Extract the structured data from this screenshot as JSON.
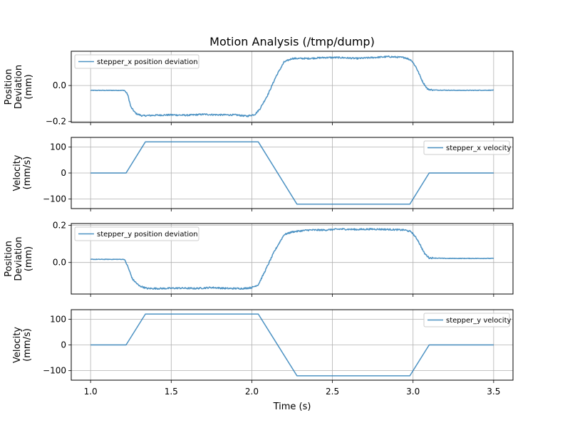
{
  "chart_data": {
    "type": "line",
    "title": "Motion Analysis (/tmp/dump)",
    "xlabel": "Time (s)",
    "xlim": [
      0.88,
      3.62
    ],
    "xticks": [
      1.0,
      1.5,
      2.0,
      2.5,
      3.0,
      3.5
    ],
    "xtick_labels": [
      "1.0",
      "1.5",
      "2.0",
      "2.5",
      "3.0",
      "3.5"
    ],
    "series_color": "#1f77b4",
    "grid": true,
    "panels": [
      {
        "ylabel": [
          "Position",
          "Deviation",
          "(mm)"
        ],
        "ylim": [
          -0.205,
          0.19
        ],
        "yticks": [
          0.0,
          -0.2
        ],
        "ytick_labels": [
          "0.0",
          "−0.2"
        ],
        "legend": "stepper_x position deviation",
        "legend_loc": "upper left",
        "noise": 0.006,
        "points": [
          [
            1.0,
            -0.027
          ],
          [
            1.21,
            -0.027
          ],
          [
            1.23,
            -0.05
          ],
          [
            1.25,
            -0.12
          ],
          [
            1.28,
            -0.155
          ],
          [
            1.32,
            -0.168
          ],
          [
            1.4,
            -0.165
          ],
          [
            1.5,
            -0.163
          ],
          [
            1.6,
            -0.165
          ],
          [
            1.7,
            -0.16
          ],
          [
            1.8,
            -0.163
          ],
          [
            1.9,
            -0.163
          ],
          [
            1.97,
            -0.17
          ],
          [
            2.02,
            -0.16
          ],
          [
            2.05,
            -0.13
          ],
          [
            2.1,
            -0.05
          ],
          [
            2.15,
            0.05
          ],
          [
            2.2,
            0.13
          ],
          [
            2.25,
            0.15
          ],
          [
            2.35,
            0.15
          ],
          [
            2.45,
            0.155
          ],
          [
            2.55,
            0.155
          ],
          [
            2.65,
            0.15
          ],
          [
            2.75,
            0.155
          ],
          [
            2.85,
            0.16
          ],
          [
            2.95,
            0.155
          ],
          [
            2.99,
            0.14
          ],
          [
            3.02,
            0.1
          ],
          [
            3.06,
            0.02
          ],
          [
            3.09,
            -0.02
          ],
          [
            3.12,
            -0.025
          ],
          [
            3.3,
            -0.027
          ],
          [
            3.5,
            -0.026
          ]
        ]
      },
      {
        "ylabel": [
          "Velocity",
          "(mm/s)"
        ],
        "ylim": [
          -137,
          137
        ],
        "yticks": [
          100,
          0,
          -100
        ],
        "ytick_labels": [
          "100",
          "0",
          "−100"
        ],
        "legend": "stepper_x velocity",
        "legend_loc": "upper right",
        "noise": 0,
        "points": [
          [
            1.0,
            0
          ],
          [
            1.22,
            0
          ],
          [
            1.34,
            120
          ],
          [
            2.04,
            120
          ],
          [
            2.28,
            -120
          ],
          [
            2.98,
            -120
          ],
          [
            3.1,
            0
          ],
          [
            3.5,
            0
          ]
        ]
      },
      {
        "ylabel": [
          "Position",
          "Deviation",
          "(mm)"
        ],
        "ylim": [
          -0.17,
          0.21
        ],
        "yticks": [
          0.2,
          0.0
        ],
        "ytick_labels": [
          "0.2",
          "0.0"
        ],
        "legend": "stepper_y position deviation",
        "legend_loc": "upper left",
        "noise": 0.006,
        "points": [
          [
            1.0,
            0.017
          ],
          [
            1.21,
            0.017
          ],
          [
            1.23,
            -0.02
          ],
          [
            1.26,
            -0.09
          ],
          [
            1.3,
            -0.125
          ],
          [
            1.35,
            -0.14
          ],
          [
            1.45,
            -0.14
          ],
          [
            1.55,
            -0.138
          ],
          [
            1.65,
            -0.14
          ],
          [
            1.75,
            -0.135
          ],
          [
            1.85,
            -0.14
          ],
          [
            1.95,
            -0.14
          ],
          [
            2.0,
            -0.135
          ],
          [
            2.04,
            -0.12
          ],
          [
            2.08,
            -0.05
          ],
          [
            2.14,
            0.06
          ],
          [
            2.2,
            0.15
          ],
          [
            2.25,
            0.165
          ],
          [
            2.35,
            0.175
          ],
          [
            2.45,
            0.175
          ],
          [
            2.55,
            0.18
          ],
          [
            2.65,
            0.178
          ],
          [
            2.75,
            0.18
          ],
          [
            2.85,
            0.178
          ],
          [
            2.95,
            0.175
          ],
          [
            2.99,
            0.165
          ],
          [
            3.03,
            0.12
          ],
          [
            3.07,
            0.05
          ],
          [
            3.1,
            0.025
          ],
          [
            3.2,
            0.022
          ],
          [
            3.5,
            0.022
          ]
        ]
      },
      {
        "ylabel": [
          "Velocity",
          "(mm/s)"
        ],
        "ylim": [
          -137,
          137
        ],
        "yticks": [
          100,
          0,
          -100
        ],
        "ytick_labels": [
          "100",
          "0",
          "−100"
        ],
        "legend": "stepper_y velocity",
        "legend_loc": "upper right",
        "noise": 0,
        "points": [
          [
            1.0,
            0
          ],
          [
            1.22,
            0
          ],
          [
            1.34,
            120
          ],
          [
            2.04,
            120
          ],
          [
            2.28,
            -120
          ],
          [
            2.98,
            -120
          ],
          [
            3.1,
            0
          ],
          [
            3.5,
            0
          ]
        ]
      }
    ]
  }
}
